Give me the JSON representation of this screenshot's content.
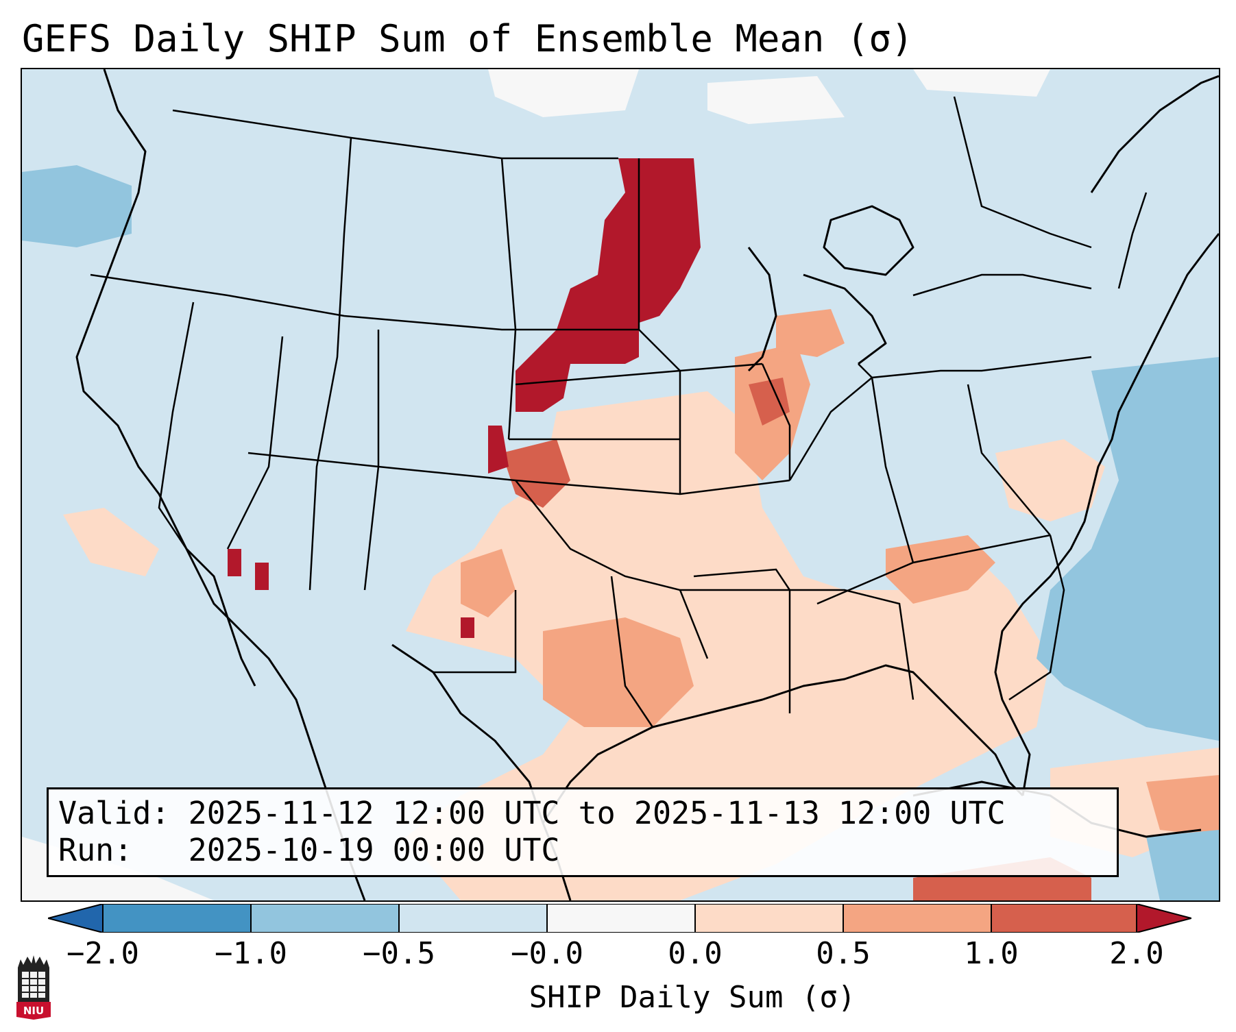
{
  "title": "GEFS Daily SHIP Sum of Ensemble Mean (σ)",
  "info": {
    "valid_label": "Valid:",
    "valid_value": "2025-11-12 12:00 UTC to 2025-11-13 12:00 UTC",
    "run_label": "Run:",
    "run_value": "2025-10-19 00:00 UTC"
  },
  "colorbar": {
    "label": "SHIP Daily Sum (σ)",
    "ticks": [
      "−2.0",
      "−1.0",
      "−0.5",
      "−0.0",
      "0.0",
      "0.5",
      "1.0",
      "2.0"
    ],
    "colors": [
      "#4393c3",
      "#92c5de",
      "#d1e5f0",
      "#f7f7f7",
      "#fddbc7",
      "#f4a582",
      "#d6604d",
      "#b2182b"
    ],
    "under_color": "#2166ac",
    "over_color": "#b2182b"
  },
  "map": {
    "region": "Contiguous United States",
    "background_color": "#d1e5f0"
  },
  "logo": {
    "text": "NIU"
  }
}
